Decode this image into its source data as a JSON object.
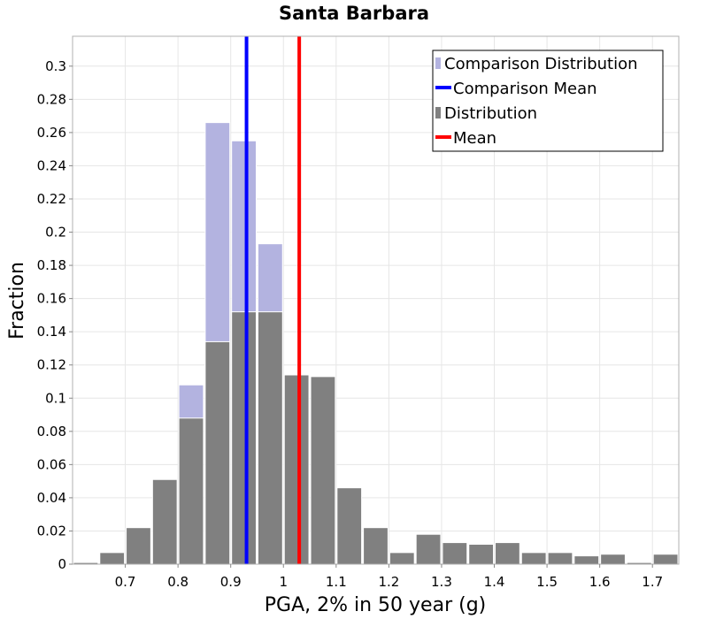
{
  "chart_data": {
    "type": "bar",
    "title": "Santa Barbara",
    "xlabel": "PGA, 2% in 50 year (g)",
    "ylabel": "Fraction",
    "xlim": [
      0.6,
      1.75
    ],
    "ylim": [
      0,
      0.318
    ],
    "bin_width": 0.05,
    "x_ticks": [
      {
        "value": 0.7,
        "label": "0.7"
      },
      {
        "value": 0.8,
        "label": "0.8"
      },
      {
        "value": 0.9,
        "label": "0.9"
      },
      {
        "value": 1.0,
        "label": "1"
      },
      {
        "value": 1.1,
        "label": "1.1"
      },
      {
        "value": 1.2,
        "label": "1.2"
      },
      {
        "value": 1.3,
        "label": "1.3"
      },
      {
        "value": 1.4,
        "label": "1.4"
      },
      {
        "value": 1.5,
        "label": "1.5"
      },
      {
        "value": 1.6,
        "label": "1.6"
      },
      {
        "value": 1.7,
        "label": "1.7"
      }
    ],
    "y_ticks": [
      {
        "value": 0,
        "label": "0"
      },
      {
        "value": 0.02,
        "label": "0.02"
      },
      {
        "value": 0.04,
        "label": "0.04"
      },
      {
        "value": 0.06,
        "label": "0.06"
      },
      {
        "value": 0.08,
        "label": "0.08"
      },
      {
        "value": 0.1,
        "label": "0.1"
      },
      {
        "value": 0.12,
        "label": "0.12"
      },
      {
        "value": 0.14,
        "label": "0.14"
      },
      {
        "value": 0.16,
        "label": "0.16"
      },
      {
        "value": 0.18,
        "label": "0.18"
      },
      {
        "value": 0.2,
        "label": "0.2"
      },
      {
        "value": 0.22,
        "label": "0.22"
      },
      {
        "value": 0.24,
        "label": "0.24"
      },
      {
        "value": 0.26,
        "label": "0.26"
      },
      {
        "value": 0.28,
        "label": "0.28"
      },
      {
        "value": 0.3,
        "label": "0.3"
      }
    ],
    "grid": true,
    "legend_position": "top-right",
    "series": [
      {
        "name": "Comparison Distribution",
        "kind": "bar",
        "color": "#b3b3e0",
        "points": [
          {
            "x": 0.8,
            "y": 0.108
          },
          {
            "x": 0.85,
            "y": 0.266
          },
          {
            "x": 0.9,
            "y": 0.255
          },
          {
            "x": 0.95,
            "y": 0.193
          }
        ]
      },
      {
        "name": "Distribution",
        "kind": "bar",
        "color": "#808080",
        "points": [
          {
            "x": 0.6,
            "y": 0.001
          },
          {
            "x": 0.65,
            "y": 0.007
          },
          {
            "x": 0.7,
            "y": 0.022
          },
          {
            "x": 0.75,
            "y": 0.051
          },
          {
            "x": 0.8,
            "y": 0.088
          },
          {
            "x": 0.85,
            "y": 0.134
          },
          {
            "x": 0.9,
            "y": 0.152
          },
          {
            "x": 0.95,
            "y": 0.152
          },
          {
            "x": 1.0,
            "y": 0.114
          },
          {
            "x": 1.05,
            "y": 0.113
          },
          {
            "x": 1.1,
            "y": 0.046
          },
          {
            "x": 1.15,
            "y": 0.022
          },
          {
            "x": 1.2,
            "y": 0.007
          },
          {
            "x": 1.25,
            "y": 0.018
          },
          {
            "x": 1.3,
            "y": 0.013
          },
          {
            "x": 1.35,
            "y": 0.012
          },
          {
            "x": 1.4,
            "y": 0.013
          },
          {
            "x": 1.45,
            "y": 0.007
          },
          {
            "x": 1.5,
            "y": 0.007
          },
          {
            "x": 1.55,
            "y": 0.005
          },
          {
            "x": 1.6,
            "y": 0.006
          },
          {
            "x": 1.65,
            "y": 0.001
          },
          {
            "x": 1.7,
            "y": 0.006
          }
        ]
      },
      {
        "name": "Comparison Mean",
        "kind": "vline",
        "color": "#0000ff",
        "x": 0.93
      },
      {
        "name": "Mean",
        "kind": "vline",
        "color": "#ff0000",
        "x": 1.03
      }
    ]
  }
}
